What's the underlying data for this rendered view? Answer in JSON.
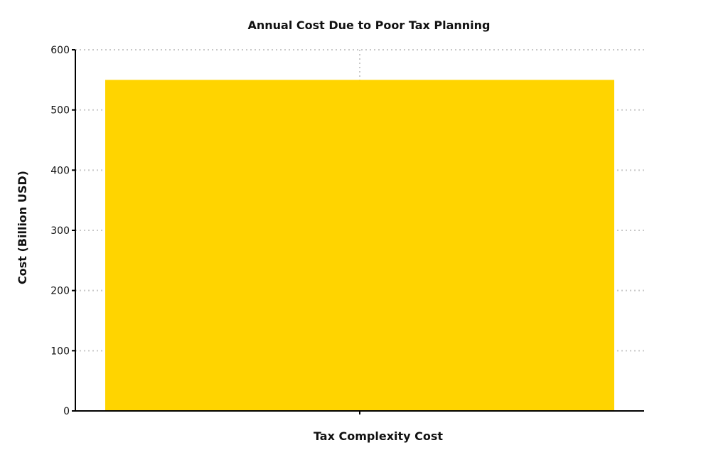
{
  "chart_data": {
    "type": "bar",
    "title": "Annual Cost Due to Poor Tax Planning",
    "xlabel": "Tax Complexity Cost",
    "ylabel": "Cost (Billion USD)",
    "categories": [
      ""
    ],
    "values": [
      550
    ],
    "ylim": [
      0,
      600
    ],
    "yticks": [
      0,
      100,
      200,
      300,
      400,
      500,
      600
    ],
    "grid": true,
    "bar_color": "#FFD400"
  }
}
